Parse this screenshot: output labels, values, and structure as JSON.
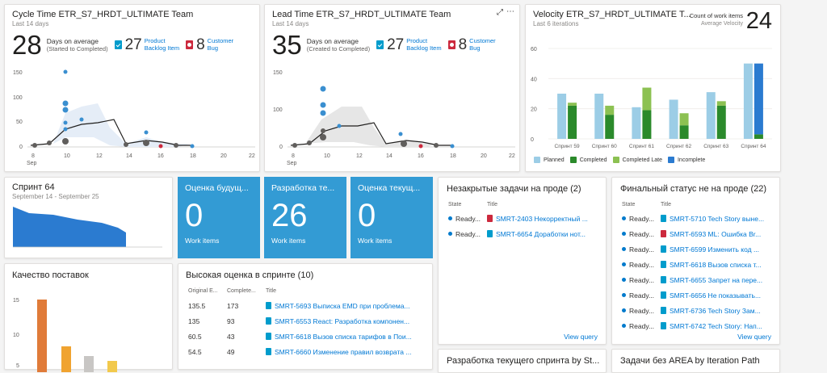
{
  "cycle": {
    "title": "Cycle Time ETR_S7_HRDT_ULTIMATE Team",
    "sub": "Last 14 days",
    "big": "28",
    "desc1": "Days on average",
    "desc2": "(Started to Completed)",
    "pbi_count": "27",
    "pbi_label1": "Product",
    "pbi_label2": "Backlog Item",
    "bug_count": "8",
    "bug_label1": "Customer",
    "bug_label2": "Bug",
    "y_ticks": [
      "150",
      "100",
      "50",
      "0"
    ],
    "x_ticks": [
      "8",
      "10",
      "12",
      "14",
      "16",
      "18",
      "20",
      "22"
    ],
    "month": "Sep"
  },
  "lead": {
    "title": "Lead Time ETR_S7_HRDT_ULTIMATE Team",
    "sub": "Last 14 days",
    "big": "35",
    "desc1": "Days on average",
    "desc2": "(Created to Completed)",
    "pbi_count": "27",
    "pbi_label1": "Product",
    "pbi_label2": "Backlog Item",
    "bug_count": "8",
    "bug_label1": "Customer",
    "bug_label2": "Bug",
    "y_ticks": [
      "150",
      "100",
      "50",
      "0"
    ],
    "x_ticks": [
      "8",
      "10",
      "12",
      "14",
      "16",
      "18",
      "20",
      "22"
    ],
    "month": "Sep"
  },
  "velocity": {
    "title": "Velocity ETR_S7_HRDT_ULTIMATE T...",
    "sub": "Last 6 iterations",
    "metric_label": "Count of work items",
    "metric_sub": "Average Velocity",
    "metric_value": "24",
    "legend": [
      "Planned",
      "Completed",
      "Completed Late",
      "Incomplete"
    ],
    "colors": {
      "planned": "#9ccde6",
      "completed": "#2b8a2b",
      "late": "#8cc152",
      "incomplete": "#2b7bd0"
    }
  },
  "chart_data": {
    "type": "bar",
    "title": "Velocity ETR_S7_HRDT_ULTIMATE T...",
    "categories": [
      "Спринт 59",
      "Спринт 60",
      "Спринт 61",
      "Спринт 62",
      "Спринт 63",
      "Спринт 64"
    ],
    "series": [
      {
        "name": "Planned",
        "values": [
          30,
          30,
          21,
          26,
          31,
          50
        ]
      },
      {
        "name": "Completed",
        "values": [
          22,
          16,
          19,
          9,
          22,
          3
        ]
      },
      {
        "name": "Completed Late",
        "values": [
          2,
          6,
          15,
          8,
          3,
          0
        ]
      },
      {
        "name": "Incomplete",
        "values": [
          0,
          0,
          0,
          0,
          0,
          47
        ]
      }
    ],
    "y_ticks": [
      "60",
      "40",
      "20",
      "0"
    ],
    "ylim": [
      0,
      60
    ]
  },
  "sprint": {
    "title": "Спринт 64",
    "sub": "September 14 - September 25"
  },
  "counters": [
    {
      "title": "Оценка будущ...",
      "value": "0",
      "label": "Work items"
    },
    {
      "title": "Разработка те...",
      "value": "26",
      "label": "Work items"
    },
    {
      "title": "Оценка текущ...",
      "value": "0",
      "label": "Work items"
    }
  ],
  "open_tasks": {
    "title": "Незакрытые задачи на проде (2)",
    "col_state": "State",
    "col_title": "Title",
    "rows": [
      {
        "state": "Ready...",
        "title": "SMRT-2403 Некорректный ...",
        "type": "bug"
      },
      {
        "state": "Ready...",
        "title": "SMRT-6654 Доработки нот...",
        "type": "bl"
      }
    ],
    "view": "View query"
  },
  "final_status": {
    "title": "Финальный статус не на проде (22)",
    "col_state": "State",
    "col_title": "Title",
    "rows": [
      {
        "state": "Ready...",
        "title": "SMRT-5710 Tech Story выне...",
        "type": "bl"
      },
      {
        "state": "Ready...",
        "title": "SMRT-6593 ML: Ошибка Br...",
        "type": "bug"
      },
      {
        "state": "Ready...",
        "title": "SMRT-6599 Изменить код ...",
        "type": "bl"
      },
      {
        "state": "Ready...",
        "title": "SMRT-6618 Вызов списка т...",
        "type": "bl"
      },
      {
        "state": "Ready...",
        "title": "SMRT-6655 Запрет на пере...",
        "type": "bl"
      },
      {
        "state": "Ready...",
        "title": "SMRT-6656 Не показывать...",
        "type": "bl"
      },
      {
        "state": "Ready...",
        "title": "SMRT-6736 Tech Story Зам...",
        "type": "bl"
      },
      {
        "state": "Ready...",
        "title": "SMRT-6742 Tech Story: Нап...",
        "type": "bl"
      }
    ],
    "view": "View query"
  },
  "quality": {
    "title": "Качество поставок",
    "y_ticks": [
      "15",
      "10",
      "5"
    ]
  },
  "high_estimate": {
    "title": "Высокая оценка в спринте (10)",
    "col_orig": "Original E...",
    "col_comp": "Complete...",
    "col_title": "Title",
    "rows": [
      {
        "orig": "135.5",
        "comp": "173",
        "title": "SMRT-5693 Выписка EMD при проблема..."
      },
      {
        "orig": "135",
        "comp": "93",
        "title": "SMRT-6553 React: Разработка компонен..."
      },
      {
        "orig": "60.5",
        "comp": "43",
        "title": "SMRT-6618 Вызов списка тарифов в Пои..."
      },
      {
        "orig": "54.5",
        "comp": "49",
        "title": "SMRT-6660 Изменение правил возврата ..."
      }
    ]
  },
  "bottom1": {
    "title": "Разработка текущего спринта by St..."
  },
  "bottom2": {
    "title": "Задачи без AREA by Iteration Path"
  }
}
